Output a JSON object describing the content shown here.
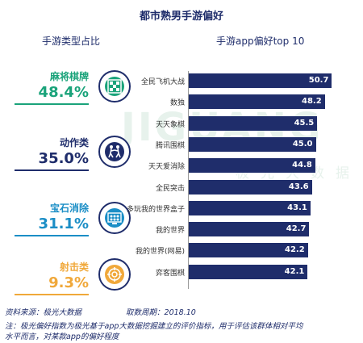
{
  "title": "都市熟男手游偏好",
  "left": {
    "section_title": "手游类型占比",
    "categories": [
      {
        "name": "麻将棋牌",
        "pct": "48.4%",
        "color": "#1aa37a"
      },
      {
        "name": "动作类",
        "pct": "35.0%",
        "color": "#1f2d6b"
      },
      {
        "name": "宝石消除",
        "pct": "31.1%",
        "color": "#1b8ec6"
      },
      {
        "name": "射击类",
        "pct": "9.3%",
        "color": "#f0a83a"
      }
    ]
  },
  "right": {
    "section_title": "手游app偏好top 10"
  },
  "watermark": {
    "brand": "JIGUANG",
    "sub": "极光大数据"
  },
  "chart_data": {
    "type": "bar",
    "orientation": "horizontal",
    "title": "手游app偏好top 10",
    "categories": [
      "全民飞机大战",
      "数独",
      "天天象棋",
      "腾讯围棋",
      "天天爱消除",
      "全民突击",
      "多玩我的世界盒子",
      "我的世界",
      "我的世界(网易)",
      "弈客围棋"
    ],
    "values": [
      50.7,
      48.2,
      45.5,
      45.0,
      44.8,
      43.6,
      43.1,
      42.7,
      42.2,
      42.1
    ],
    "value_labels": [
      "50.7",
      "48.2",
      "45.5",
      "45.0",
      "44.8",
      "43.6",
      "43.1",
      "42.7",
      "42.2",
      "42.1"
    ],
    "color": "#1f2d6b"
  },
  "footer": {
    "source": "资料来源：极光大数据",
    "period": "取数周期：2018.10",
    "note1": "注：极光偏好指数为极光基于app大数据挖掘建立的评价指标，用于评估该群体相对平均",
    "note2": "水平而言，对某款app的偏好程度"
  }
}
